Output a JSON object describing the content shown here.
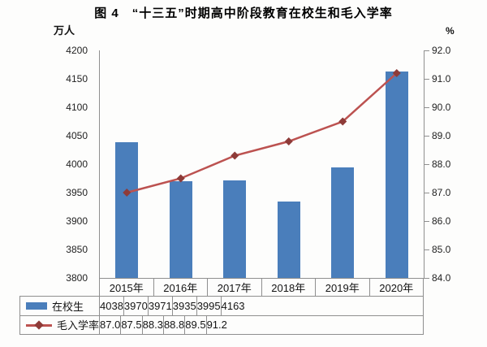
{
  "chart_data": {
    "type": "combo-bar-line",
    "title": "图 4　“十三五”时期高中阶段教育在校生和毛入学率",
    "categories": [
      "2015年",
      "2016年",
      "2017年",
      "2018年",
      "2019年",
      "2020年"
    ],
    "series": [
      {
        "name": "在校生",
        "type": "bar",
        "axis": "left",
        "values": [
          4038,
          3970,
          3971,
          3935,
          3995,
          4163
        ],
        "decimals": 0,
        "color": "#4A7EBB"
      },
      {
        "name": "毛入学率",
        "type": "line",
        "axis": "right",
        "values": [
          87.0,
          87.5,
          88.3,
          88.8,
          89.5,
          91.2
        ],
        "decimals": 1,
        "color": "#BC5250",
        "marker": "diamond",
        "marker_color": "#8E3B38"
      }
    ],
    "left_axis": {
      "label": "万人",
      "min": 3800,
      "max": 4200,
      "step": 50,
      "decimals": 0
    },
    "right_axis": {
      "label": "%",
      "min": 84.0,
      "max": 92.0,
      "step": 1.0,
      "decimals": 1
    },
    "grid": false,
    "legend_position": "table-left",
    "data_table_shown": true
  }
}
